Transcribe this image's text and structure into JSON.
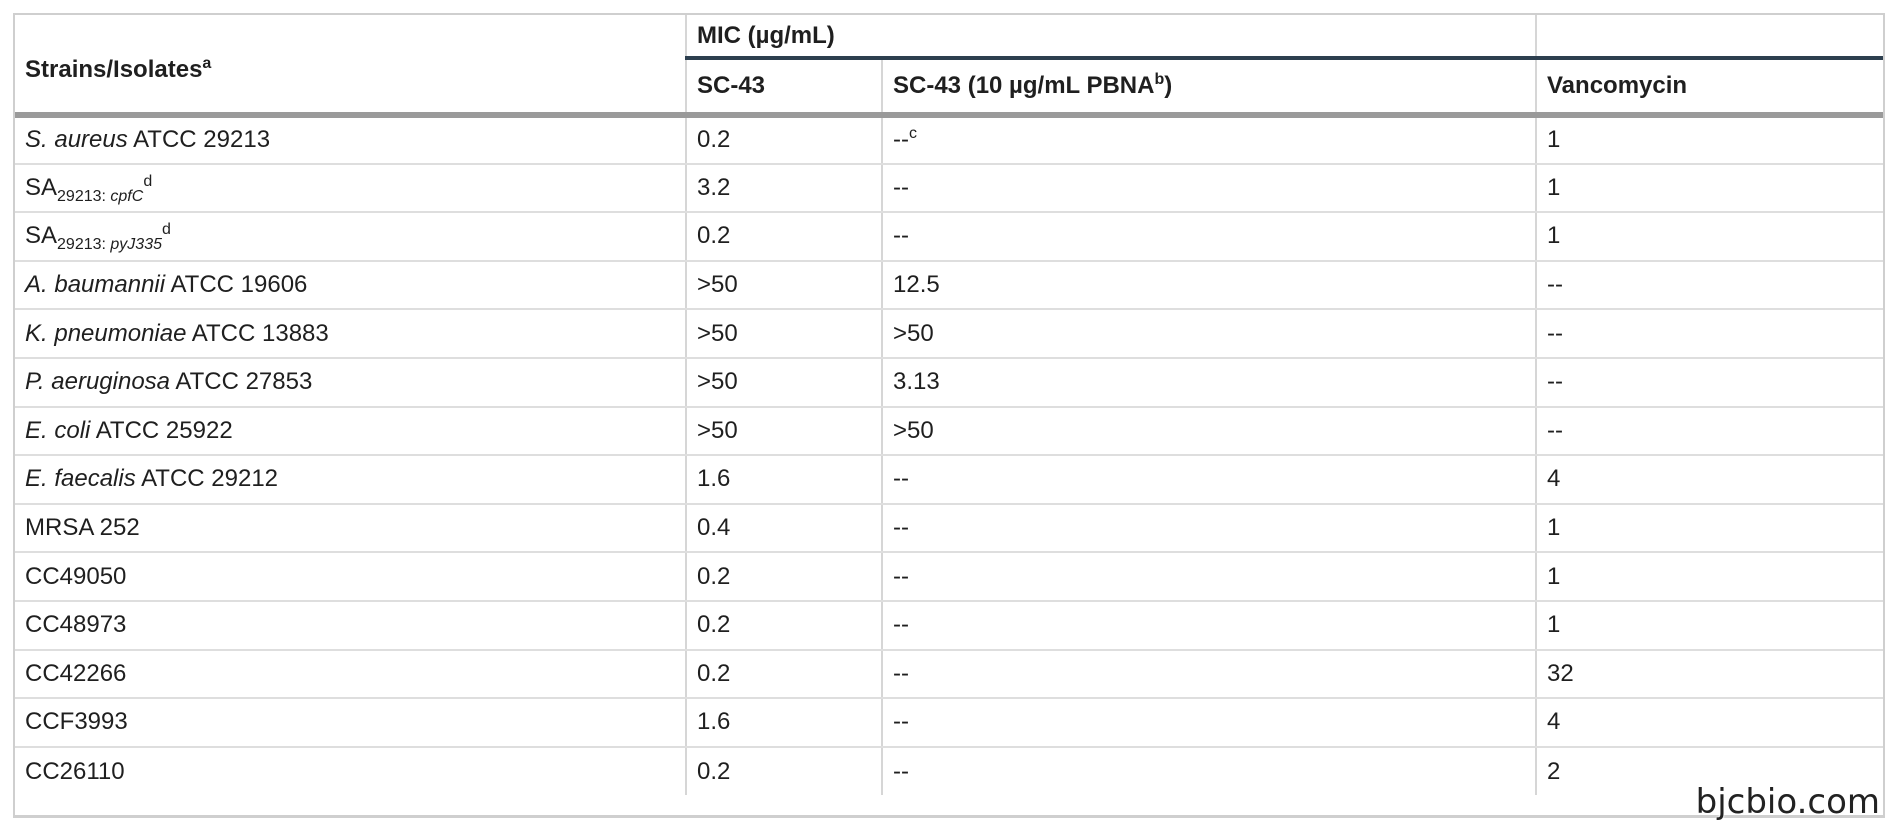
{
  "header": {
    "strain_label": "Strains/Isolates",
    "strain_sup": "a",
    "mic_label": "MIC (µg/mL)",
    "col_sc43": "SC-43",
    "col_sc43_pbna": "SC-43 (10 µg/mL PBNA",
    "col_sc43_pbna_sup": "b",
    "col_sc43_pbna_close": ")",
    "col_vanco": "Vancomycin"
  },
  "rows": [
    {
      "italic": "S. aureus",
      "name": " ATCC 29213",
      "sc43": "0.2",
      "pbna": "--",
      "pbna_sup": "c",
      "vanco": "1"
    },
    {
      "italic": "",
      "name": "SA",
      "sub_num": "29213: ",
      "sub_it": "cpfC",
      "sup": "d",
      "sc43": "3.2",
      "pbna": "--",
      "vanco": "1"
    },
    {
      "italic": "",
      "name": "SA",
      "sub_num": "29213: ",
      "sub_it": "pyJ335",
      "sup": "d",
      "sc43": "0.2",
      "pbna": "--",
      "vanco": "1"
    },
    {
      "italic": "A. baumannii",
      "name": " ATCC 19606",
      "sc43": ">50",
      "pbna": "12.5",
      "vanco": "--"
    },
    {
      "italic": "K. pneumoniae",
      "name": " ATCC 13883",
      "sc43": ">50",
      "pbna": ">50",
      "vanco": "--"
    },
    {
      "italic": "P. aeruginosa",
      "name": " ATCC 27853",
      "sc43": ">50",
      "pbna": "3.13",
      "vanco": "--"
    },
    {
      "italic": "E. coli",
      "name": " ATCC 25922",
      "sc43": ">50",
      "pbna": ">50",
      "vanco": "--"
    },
    {
      "italic": "E. faecalis",
      "name": " ATCC 29212",
      "sc43": "1.6",
      "pbna": "--",
      "vanco": "4"
    },
    {
      "italic": "",
      "name": "MRSA 252",
      "sc43": "0.4",
      "pbna": "--",
      "vanco": "1"
    },
    {
      "italic": "",
      "name": "CC49050",
      "sc43": "0.2",
      "pbna": "--",
      "vanco": "1"
    },
    {
      "italic": "",
      "name": "CC48973",
      "sc43": "0.2",
      "pbna": "--",
      "vanco": "1"
    },
    {
      "italic": "",
      "name": "CC42266",
      "sc43": "0.2",
      "pbna": "--",
      "vanco": "32"
    },
    {
      "italic": "",
      "name": "CCF3993",
      "sc43": "1.6",
      "pbna": "--",
      "vanco": "4"
    },
    {
      "italic": "",
      "name": "CC26110",
      "sc43": "0.2",
      "pbna": "--",
      "vanco": "2"
    }
  ],
  "watermark": "bjcbio.com"
}
